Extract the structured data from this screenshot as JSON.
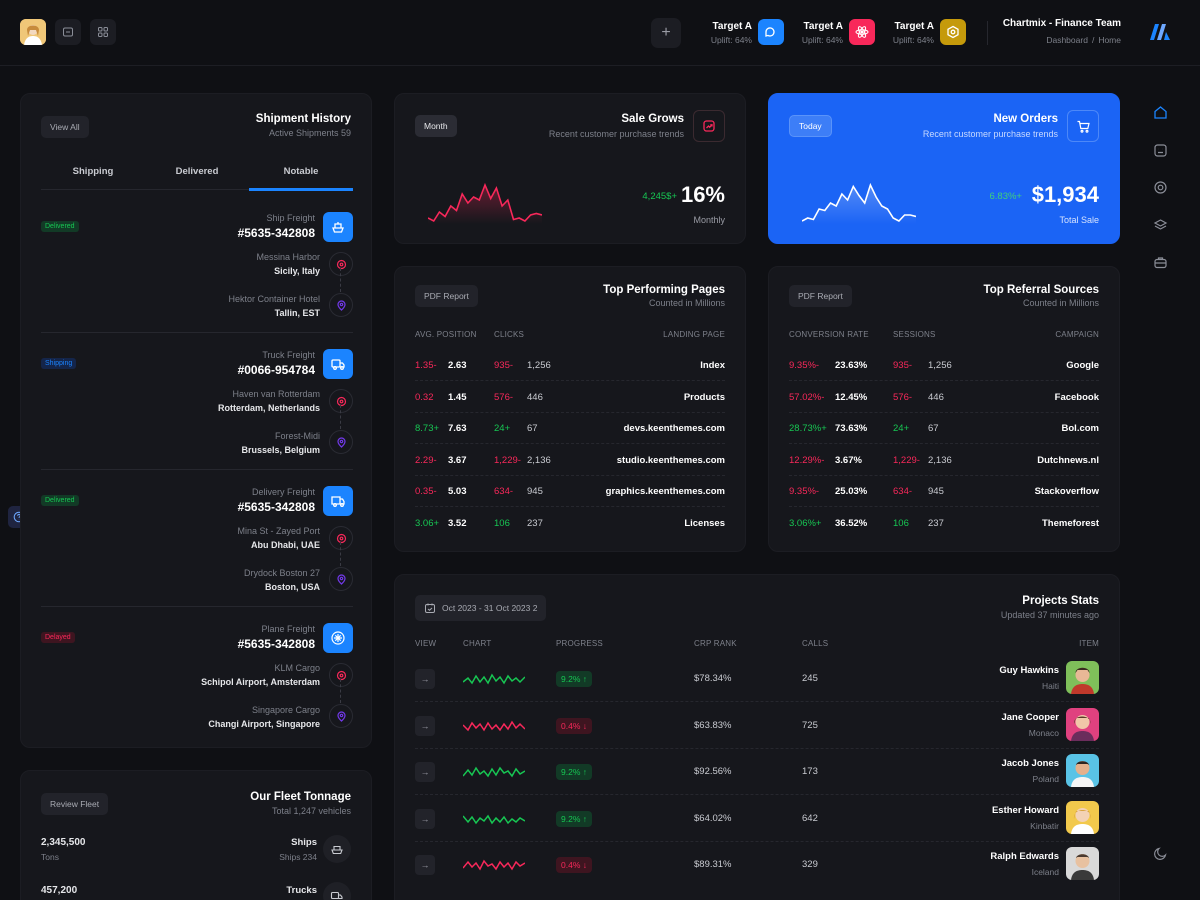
{
  "header": {
    "targets": [
      {
        "title": "Target A",
        "subtitle": "Uplift: 64%",
        "icon": "chat-icon",
        "color": "#1b84ff"
      },
      {
        "title": "Target A",
        "subtitle": "Uplift: 64%",
        "icon": "react-icon",
        "color": "#f8285a"
      },
      {
        "title": "Target A",
        "subtitle": "Uplift: 64%",
        "icon": "hexagon-icon",
        "color": "#c59a0b"
      }
    ],
    "team_name": "Chartmix - Finance Team",
    "breadcrumb": [
      "Dashboard",
      "/",
      "Home"
    ]
  },
  "shipments": {
    "title": "Shipment History",
    "subtitle": "Active Shipments 59",
    "view_all": "View All",
    "tabs": [
      "Shipping",
      "Delivered",
      "Notable"
    ],
    "active_tab": "Notable",
    "items": [
      {
        "status": "Delivered",
        "status_type": "success",
        "kind": "Ship Freight",
        "number": "#5635-342808",
        "from_name": "Messina Harbor",
        "from_place": "Sicily, Italy",
        "to_name": "Hektor Container Hotel",
        "to_place": "Tallin, EST",
        "icon": "ship-icon"
      },
      {
        "status": "Shipping",
        "status_type": "primary",
        "kind": "Truck Freight",
        "number": "#0066-954784",
        "from_name": "Haven van Rotterdam",
        "from_place": "Rotterdam, Netherlands",
        "to_name": "Forest-Midi",
        "to_place": "Brussels, Belgium",
        "icon": "truck-icon"
      },
      {
        "status": "Delivered",
        "status_type": "success",
        "kind": "Delivery Freight",
        "number": "#5635-342808",
        "from_name": "Mina St - Zayed Port",
        "from_place": "Abu Dhabi, UAE",
        "to_name": "Drydock Boston 27",
        "to_place": "Boston, USA",
        "icon": "delivery-truck-icon"
      },
      {
        "status": "Delayed",
        "status_type": "danger",
        "kind": "Plane Freight",
        "number": "#5635-342808",
        "from_name": "KLM Cargo",
        "from_place": "Schipol Airport, Amsterdam",
        "to_name": "Singapore Cargo",
        "to_place": "Changi Airport, Singapore",
        "icon": "airplane-icon"
      }
    ]
  },
  "fleet": {
    "title": "Our Fleet Tonnage",
    "subtitle": "Total 1,247 vehicles",
    "button": "Review Fleet",
    "rows": [
      {
        "value": "2,345,500",
        "unit": "Tons",
        "name": "Ships",
        "sub": "Ships 234"
      },
      {
        "value": "457,200",
        "unit": "",
        "name": "Trucks",
        "sub": ""
      }
    ]
  },
  "sale_grows": {
    "chip": "Month",
    "title": "Sale Grows",
    "subtitle": "Recent customer purchase trends",
    "small_value": "4,245$+",
    "big_value": "16%",
    "label": "Monthly",
    "accent": "#f8285a",
    "trend": [
      12,
      10,
      16,
      13,
      20,
      17,
      28,
      22,
      26,
      24,
      34,
      25,
      32,
      20,
      24,
      11,
      12,
      10,
      14,
      15,
      14
    ]
  },
  "new_orders": {
    "chip": "Today",
    "title": "New Orders",
    "subtitle": "Recent customer purchase trends",
    "small_value": "6.83%+",
    "big_value": "$1,934",
    "label": "Total Sale",
    "accent": "#1b84ff",
    "trend": [
      10,
      12,
      11,
      18,
      17,
      22,
      20,
      28,
      24,
      33,
      27,
      22,
      34,
      26,
      20,
      18,
      12,
      10,
      14,
      14,
      13
    ]
  },
  "top_pages": {
    "chip": "PDF Report",
    "title": "Top Performing Pages",
    "subtitle": "Counted in Millions",
    "headers": [
      "AVG. POSITION",
      "CLICKS",
      "LANDING PAGE"
    ],
    "rows": [
      {
        "pos_change": "1.35-",
        "pos": "2.63",
        "clicks_change": "935-",
        "clicks": "1,256",
        "page": "Index",
        "trend": "down"
      },
      {
        "pos_change": "0.32",
        "pos": "1.45",
        "clicks_change": "576-",
        "clicks": "446",
        "page": "Products",
        "trend": "down"
      },
      {
        "pos_change": "8.73+",
        "pos": "7.63",
        "clicks_change": "24+",
        "clicks": "67",
        "page": "devs.keenthemes.com",
        "trend": "up"
      },
      {
        "pos_change": "2.29-",
        "pos": "3.67",
        "clicks_change": "1,229-",
        "clicks": "2,136",
        "page": "studio.keenthemes.com",
        "trend": "down"
      },
      {
        "pos_change": "0.35-",
        "pos": "5.03",
        "clicks_change": "634-",
        "clicks": "945",
        "page": "graphics.keenthemes.com",
        "trend": "down"
      },
      {
        "pos_change": "3.06+",
        "pos": "3.52",
        "clicks_change": "106",
        "clicks": "237",
        "page": "Licenses",
        "trend": "up"
      }
    ]
  },
  "top_referrals": {
    "chip": "PDF Report",
    "title": "Top Referral Sources",
    "subtitle": "Counted in Millions",
    "headers": [
      "CONVERSION RATE",
      "SESSIONS",
      "CAMPAIGN"
    ],
    "rows": [
      {
        "rate_change": "9.35%-",
        "rate": "23.63%",
        "sess_change": "935-",
        "sessions": "1,256",
        "campaign": "Google",
        "trend": "down"
      },
      {
        "rate_change": "57.02%-",
        "rate": "12.45%",
        "sess_change": "576-",
        "sessions": "446",
        "campaign": "Facebook",
        "trend": "down"
      },
      {
        "rate_change": "28.73%+",
        "rate": "73.63%",
        "sess_change": "24+",
        "sessions": "67",
        "campaign": "Bol.com",
        "trend": "up"
      },
      {
        "rate_change": "12.29%-",
        "rate": "3.67%",
        "sess_change": "1,229-",
        "sessions": "2,136",
        "campaign": "Dutchnews.nl",
        "trend": "down"
      },
      {
        "rate_change": "9.35%-",
        "rate": "25.03%",
        "sess_change": "634-",
        "sessions": "945",
        "campaign": "Stackoverflow",
        "trend": "down"
      },
      {
        "rate_change": "3.06%+",
        "rate": "36.52%",
        "sess_change": "106",
        "sessions": "237",
        "campaign": "Themeforest",
        "trend": "up"
      }
    ]
  },
  "projects": {
    "date_range": "Oct 2023 - 31 Oct 2023 2",
    "title": "Projects Stats",
    "subtitle": "Updated 37 minutes ago",
    "headers": [
      "VIEW",
      "CHART",
      "PROGRESS",
      "CRP RANK",
      "CALLS",
      "ITEM"
    ],
    "rows": [
      {
        "progress": "9.2%",
        "dir": "up",
        "rank": "$78.34%",
        "calls": "245",
        "name": "Guy Hawkins",
        "country": "Haiti",
        "avatar_bg": "#7fbf5a"
      },
      {
        "progress": "0.4%",
        "dir": "down",
        "rank": "$63.83%",
        "calls": "725",
        "name": "Jane Cooper",
        "country": "Monaco",
        "avatar_bg": "#e0417f"
      },
      {
        "progress": "9.2%",
        "dir": "up",
        "rank": "$92.56%",
        "calls": "173",
        "name": "Jacob Jones",
        "country": "Poland",
        "avatar_bg": "#59c3e6"
      },
      {
        "progress": "9.2%",
        "dir": "up",
        "rank": "$64.02%",
        "calls": "642",
        "name": "Esther Howard",
        "country": "Kinbatir",
        "avatar_bg": "#f2c94c"
      },
      {
        "progress": "0.4%",
        "dir": "down",
        "rank": "$89.31%",
        "calls": "329",
        "name": "Ralph Edwards",
        "country": "Iceland",
        "avatar_bg": "#d9d9d9"
      }
    ]
  }
}
